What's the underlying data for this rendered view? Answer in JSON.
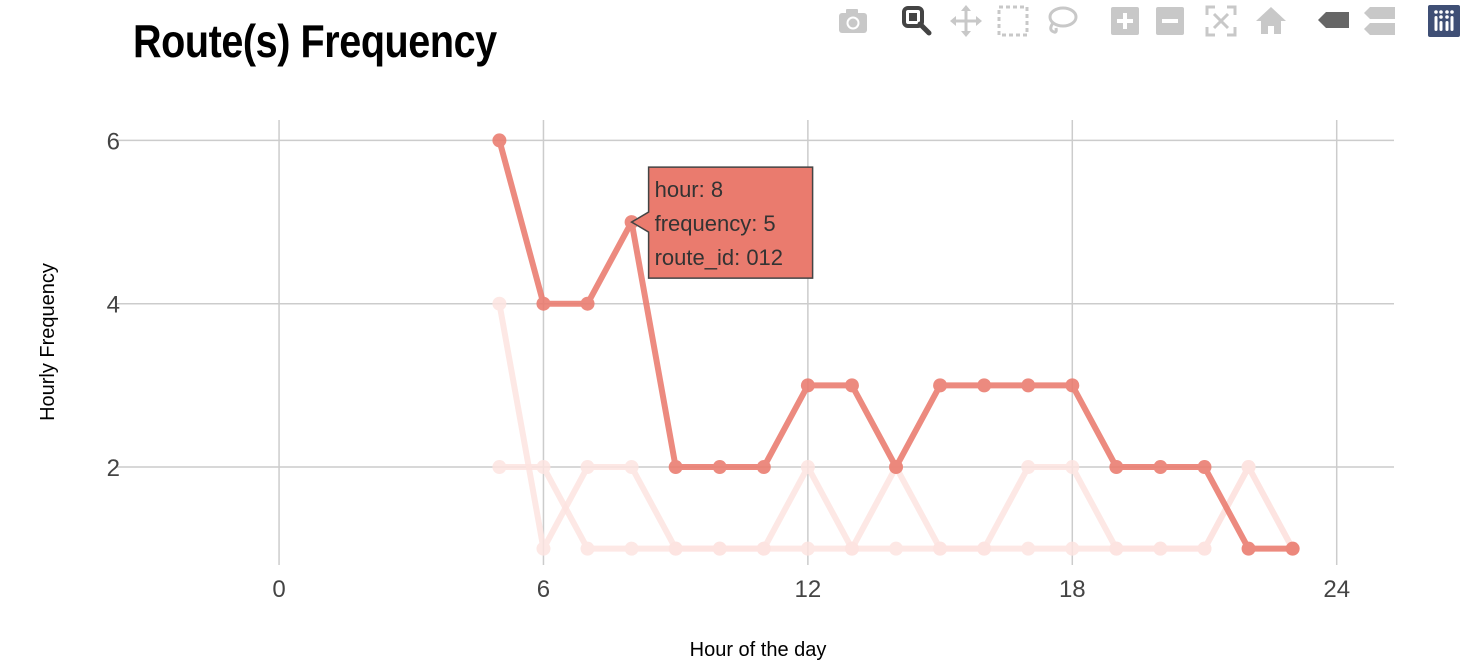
{
  "title": "Route(s) Frequency",
  "modebar": {
    "buttons": [
      {
        "name": "camera-icon",
        "label": "Download plot as a png"
      },
      {
        "name": "zoom-icon",
        "label": "Zoom"
      },
      {
        "name": "pan-icon",
        "label": "Pan"
      },
      {
        "name": "box-select-icon",
        "label": "Box Select"
      },
      {
        "name": "lasso-select-icon",
        "label": "Lasso Select"
      },
      {
        "name": "zoom-in-icon",
        "label": "Zoom in"
      },
      {
        "name": "zoom-out-icon",
        "label": "Zoom out"
      },
      {
        "name": "autoscale-icon",
        "label": "Autoscale"
      },
      {
        "name": "reset-axes-icon",
        "label": "Reset axes"
      },
      {
        "name": "hover-closest-icon",
        "label": "Show closest data on hover"
      },
      {
        "name": "hover-compare-icon",
        "label": "Compare data on hover"
      },
      {
        "name": "plotly-logo-icon",
        "label": "Produced with Plotly"
      }
    ],
    "active": "zoom-icon"
  },
  "chart_data": {
    "type": "line",
    "title": "Route(s) Frequency",
    "xlabel": "Hour of the day",
    "ylabel": "Hourly Frequency",
    "xlim": [
      -3.7,
      25.3
    ],
    "ylim": [
      0.8,
      6.25
    ],
    "xticks": [
      0,
      6,
      12,
      18,
      24
    ],
    "yticks": [
      2,
      4,
      6
    ],
    "grid": true,
    "highlight_color": "#ea7b6e",
    "faded_color": "#fde4e1",
    "series": [
      {
        "name": "",
        "highlighted": true,
        "x": [
          5,
          6,
          7,
          8,
          9,
          10,
          11,
          12,
          13,
          14,
          15,
          16,
          17,
          18,
          19,
          20,
          21,
          22,
          23
        ],
        "y": [
          6,
          4,
          4,
          5,
          2,
          2,
          2,
          3,
          3,
          2,
          3,
          3,
          3,
          3,
          2,
          2,
          2,
          1,
          1
        ]
      },
      {
        "name": "",
        "highlighted": false,
        "x": [
          5,
          6,
          7,
          8,
          9,
          10,
          11,
          12,
          13,
          14,
          15,
          16,
          17,
          18,
          19,
          20,
          21,
          22,
          23
        ],
        "y": [
          4,
          1,
          2,
          2,
          1,
          1,
          1,
          2,
          1,
          2,
          1,
          1,
          2,
          2,
          1,
          1,
          1,
          2,
          1
        ]
      },
      {
        "name": "",
        "highlighted": false,
        "x": [
          5,
          6,
          7,
          8,
          9,
          10,
          11,
          12,
          13,
          14,
          15,
          16,
          17,
          18,
          19,
          20,
          21,
          22,
          23
        ],
        "y": [
          2,
          2,
          1,
          1,
          1,
          1,
          1,
          1,
          1,
          1,
          1,
          1,
          1,
          1,
          1,
          1,
          1,
          2,
          1
        ]
      }
    ],
    "tooltip": {
      "x": 8,
      "y": 5,
      "lines": [
        "hour:  8",
        "frequency: 5",
        "route_id: 012"
      ]
    }
  }
}
